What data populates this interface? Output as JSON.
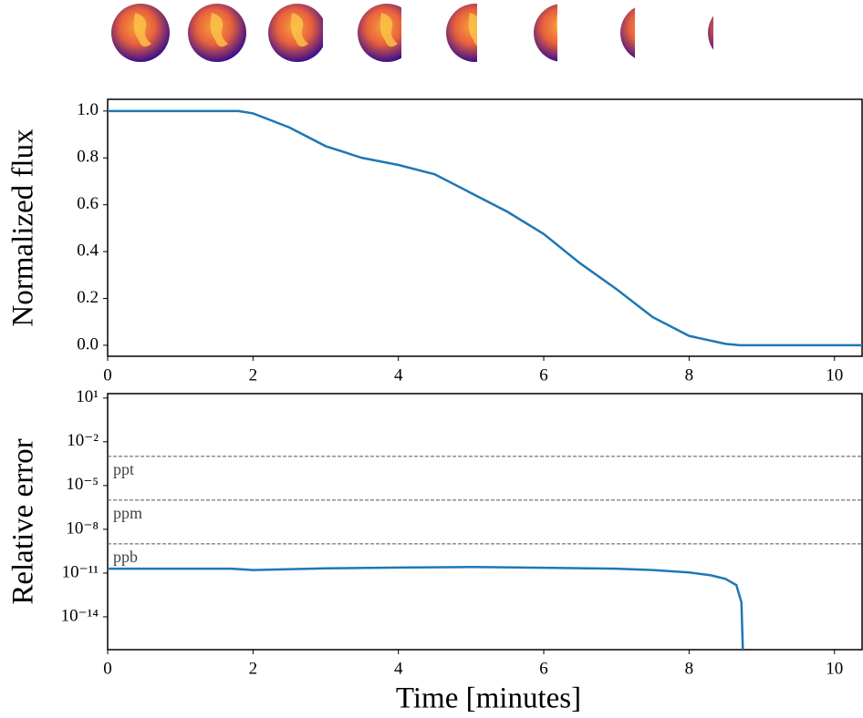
{
  "chart_data": [
    {
      "type": "line",
      "ylabel": "Normalized flux",
      "xlim": [
        0,
        10.38
      ],
      "ylim": [
        -0.047,
        1.05
      ],
      "xticks": [
        0,
        2,
        4,
        6,
        8,
        10
      ],
      "yticks": [
        {
          "value": 0,
          "label": "0.0"
        },
        0.2,
        0.4,
        0.6,
        0.8,
        {
          "value": 1,
          "label": "1.0"
        }
      ],
      "series": [
        {
          "color": "#1f77b4",
          "x": [
            0,
            1,
            1.8,
            2,
            2.5,
            3,
            3.5,
            4,
            4.5,
            5,
            5.5,
            6,
            6.5,
            7,
            7.5,
            8,
            8.5,
            8.7,
            9,
            10,
            10.38
          ],
          "values": [
            1,
            1,
            1,
            0.99,
            0.93,
            0.85,
            0.8,
            0.77,
            0.73,
            0.65,
            0.57,
            0.475,
            0.35,
            0.24,
            0.12,
            0.04,
            0.006,
            0,
            0,
            0,
            0
          ]
        }
      ]
    },
    {
      "type": "line",
      "ylabel": "Relative error",
      "xlabel": "Time [minutes]",
      "log_y": true,
      "xlim": [
        0,
        10.38
      ],
      "ylim": [
        5.6e-17,
        20
      ],
      "xticks": [
        0,
        2,
        4,
        6,
        8,
        10
      ],
      "yticks": [
        {
          "value": 10,
          "label": "10¹"
        },
        {
          "value": 0.01,
          "label": "10⁻²"
        },
        {
          "value": 1e-05,
          "label": "10⁻⁵"
        },
        {
          "value": 1e-08,
          "label": "10⁻⁸"
        },
        {
          "value": 1e-11,
          "label": "10⁻¹¹"
        },
        {
          "value": 1e-14,
          "label": "10⁻¹⁴"
        }
      ],
      "hlines": [
        {
          "value": 0.001,
          "label": "ppt"
        },
        {
          "value": 1e-06,
          "label": "ppm"
        },
        {
          "value": 1e-09,
          "label": "ppb"
        }
      ],
      "series": [
        {
          "color": "#1f77b4",
          "x": [
            0,
            1,
            1.7,
            2,
            3,
            4,
            5,
            6,
            7,
            7.5,
            8,
            8.3,
            8.5,
            8.65,
            8.72,
            8.75
          ],
          "values": [
            2e-11,
            2e-11,
            2e-11,
            1.6e-11,
            2.1e-11,
            2.4e-11,
            2.6e-11,
            2.3e-11,
            2e-11,
            1.6e-11,
            1.1e-11,
            7e-12,
            4e-12,
            1.5e-12,
            1e-13,
            1e-18
          ]
        }
      ]
    }
  ]
}
